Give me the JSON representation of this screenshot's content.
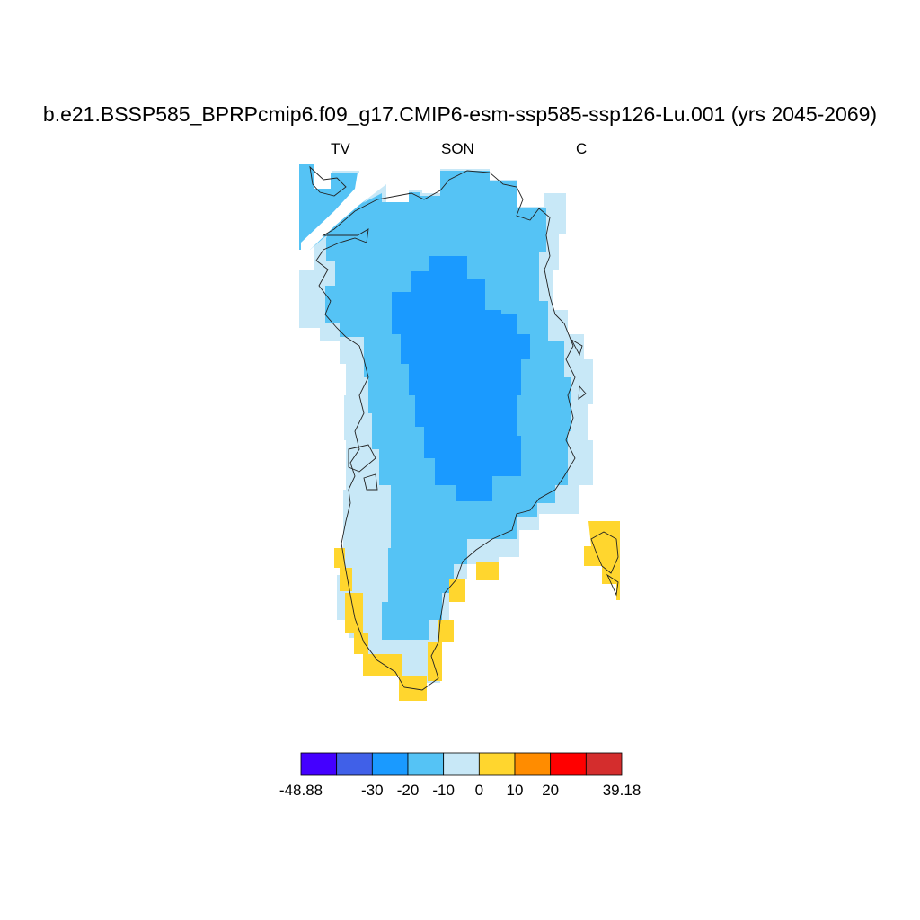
{
  "title": "b.e21.BSSP585_BPRPcmip6.f09_g17.CMIP6-esm-ssp585-ssp126-Lu.001 (yrs 2045-2069)",
  "subtitle": {
    "left": "TV",
    "center": "SON",
    "right": "C"
  },
  "colorbar": {
    "colors": [
      "#4400ff",
      "#4060e8",
      "#1a9aff",
      "#55c3f5",
      "#c8e8f7",
      "#ffd62e",
      "#ff8c00",
      "#ff0000",
      "#d42d2d"
    ],
    "tick_labels": [
      "-48.88",
      "-30",
      "-20",
      "-10",
      "0",
      "10",
      "20",
      "39.18"
    ]
  },
  "map_legend": {
    "region": "Greenland",
    "levels": {
      "deep": "-30 to -20",
      "mid": "-20 to -10",
      "light": "-10 to 0",
      "warm": "0 to 10"
    }
  }
}
